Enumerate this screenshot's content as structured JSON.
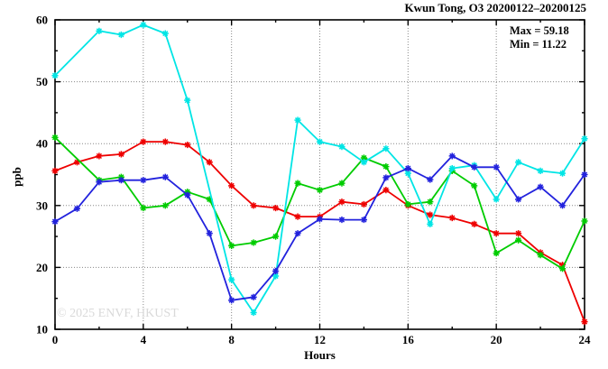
{
  "header": {
    "title": "Kwun Tong, O3 20200122–20200125"
  },
  "annotations": {
    "max_label": "Max = 59.18",
    "min_label": "Min = 11.22"
  },
  "watermark": "© 2025  ENVF, HKUST",
  "chart_data": {
    "type": "line",
    "title": "Kwun Tong, O3 20200122–20200125",
    "xlabel": "Hours",
    "ylabel": "ppb",
    "xlim": [
      0,
      24
    ],
    "ylim": [
      10,
      60
    ],
    "x_major_ticks": [
      0,
      4,
      8,
      12,
      16,
      20,
      24
    ],
    "x_minor_ticks": [
      2,
      6,
      10,
      14,
      18,
      22
    ],
    "y_major_ticks": [
      10,
      20,
      30,
      40,
      50,
      60
    ],
    "y_minor_ticks": [
      15,
      25,
      35,
      45,
      55
    ],
    "grid": "dotted-at-major-ticks",
    "legend_position": "none",
    "max_value": 59.18,
    "min_value": 11.22,
    "x": [
      0,
      1,
      2,
      3,
      4,
      5,
      6,
      7,
      8,
      9,
      10,
      11,
      12,
      13,
      14,
      15,
      16,
      17,
      18,
      19,
      20,
      21,
      22,
      23,
      24
    ],
    "series": [
      {
        "name": "line-red",
        "color": "#ee0000",
        "values": [
          35.6,
          37.0,
          38.0,
          38.3,
          40.3,
          40.3,
          39.8,
          37.0,
          33.2,
          30.0,
          29.6,
          28.2,
          28.2,
          30.6,
          30.2,
          32.5,
          30.0,
          28.5,
          28.0,
          27.0,
          25.5,
          25.5,
          22.4,
          20.4,
          11.22
        ]
      },
      {
        "name": "line-green",
        "color": "#00cc00",
        "values": [
          41.0,
          null,
          34.1,
          34.6,
          29.6,
          30.0,
          32.2,
          31.0,
          23.5,
          24.0,
          25.0,
          33.6,
          32.5,
          33.6,
          37.7,
          36.3,
          30.2,
          30.6,
          35.6,
          33.2,
          22.3,
          24.4,
          22.0,
          19.8,
          27.5
        ]
      },
      {
        "name": "line-cyan",
        "color": "#00e5e5",
        "values": [
          51.0,
          null,
          58.2,
          57.6,
          59.18,
          57.8,
          47.0,
          null,
          18.0,
          12.7,
          18.6,
          43.8,
          40.3,
          39.5,
          37.0,
          39.2,
          35.2,
          27.0,
          36.0,
          36.5,
          31.0,
          37.0,
          35.6,
          35.2,
          40.8
        ]
      },
      {
        "name": "line-blue",
        "color": "#2222dd",
        "values": [
          27.4,
          29.5,
          33.8,
          34.1,
          34.1,
          34.6,
          31.7,
          25.5,
          14.7,
          15.2,
          19.4,
          25.5,
          27.8,
          27.7,
          27.7,
          34.5,
          36.0,
          34.2,
          38.0,
          36.2,
          36.2,
          31.0,
          33.0,
          30.0,
          35.0
        ]
      }
    ]
  }
}
